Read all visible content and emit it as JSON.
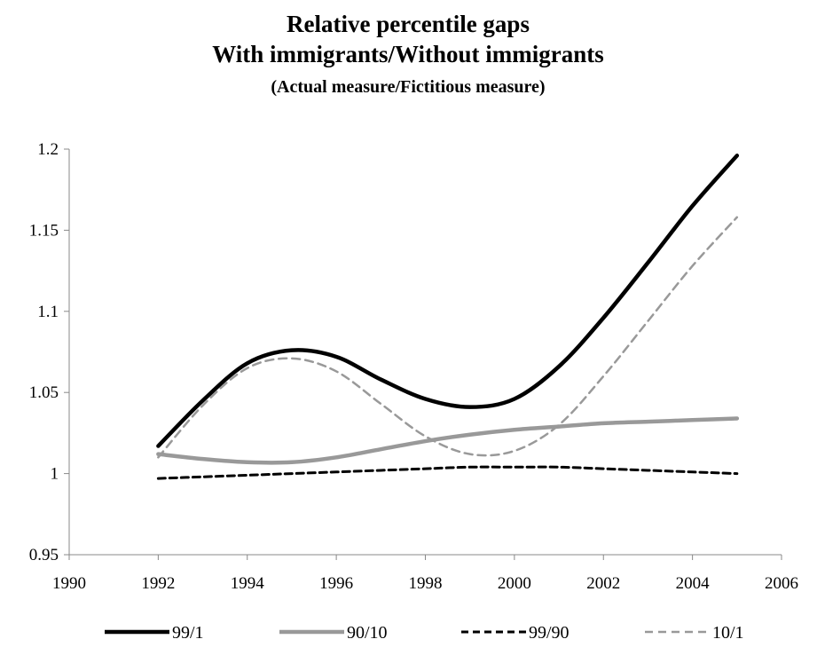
{
  "chart_data": {
    "type": "line",
    "title": "Relative percentile gaps",
    "subtitle": "With immigrants/Without immigrants",
    "subtitle2": "(Actual measure/Fictitious measure)",
    "xlabel": "",
    "ylabel": "",
    "xlim": [
      1990,
      2006
    ],
    "ylim": [
      0.95,
      1.2
    ],
    "xticks": [
      "1990",
      "1992",
      "1994",
      "1996",
      "1998",
      "2000",
      "2002",
      "2004",
      "2006"
    ],
    "yticks": [
      "0.95",
      "1",
      "1.05",
      "1.1",
      "1.15",
      "1.2"
    ],
    "legend_position": "bottom",
    "grid": false,
    "series": [
      {
        "name": "99/1",
        "color": "#000000",
        "style": "solid-thick",
        "x": [
          1992,
          1993,
          1994,
          1995,
          1996,
          1997,
          1998,
          1999,
          2000,
          2001,
          2002,
          2003,
          2004,
          2005
        ],
        "values": [
          1.017,
          1.045,
          1.068,
          1.076,
          1.072,
          1.058,
          1.046,
          1.041,
          1.046,
          1.066,
          1.096,
          1.13,
          1.165,
          1.196
        ]
      },
      {
        "name": "90/10",
        "color": "#999999",
        "style": "solid-thick",
        "x": [
          1992,
          1993,
          1994,
          1995,
          1996,
          1997,
          1998,
          1999,
          2000,
          2001,
          2002,
          2003,
          2004,
          2005
        ],
        "values": [
          1.012,
          1.009,
          1.007,
          1.007,
          1.01,
          1.015,
          1.02,
          1.024,
          1.027,
          1.029,
          1.031,
          1.032,
          1.033,
          1.034
        ]
      },
      {
        "name": "99/90",
        "color": "#000000",
        "style": "dashed",
        "x": [
          1992,
          1993,
          1994,
          1995,
          1996,
          1997,
          1998,
          1999,
          2000,
          2001,
          2002,
          2003,
          2004,
          2005
        ],
        "values": [
          0.997,
          0.998,
          0.999,
          1.0,
          1.001,
          1.002,
          1.003,
          1.004,
          1.004,
          1.004,
          1.003,
          1.002,
          1.001,
          1.0
        ]
      },
      {
        "name": "10/1",
        "color": "#999999",
        "style": "dashed-thin",
        "x": [
          1992,
          1993,
          1994,
          1995,
          1996,
          1997,
          1998,
          1999,
          2000,
          2001,
          2002,
          2003,
          2004,
          2005
        ],
        "values": [
          1.01,
          1.042,
          1.065,
          1.071,
          1.063,
          1.043,
          1.023,
          1.012,
          1.014,
          1.03,
          1.06,
          1.094,
          1.128,
          1.158
        ]
      }
    ]
  }
}
